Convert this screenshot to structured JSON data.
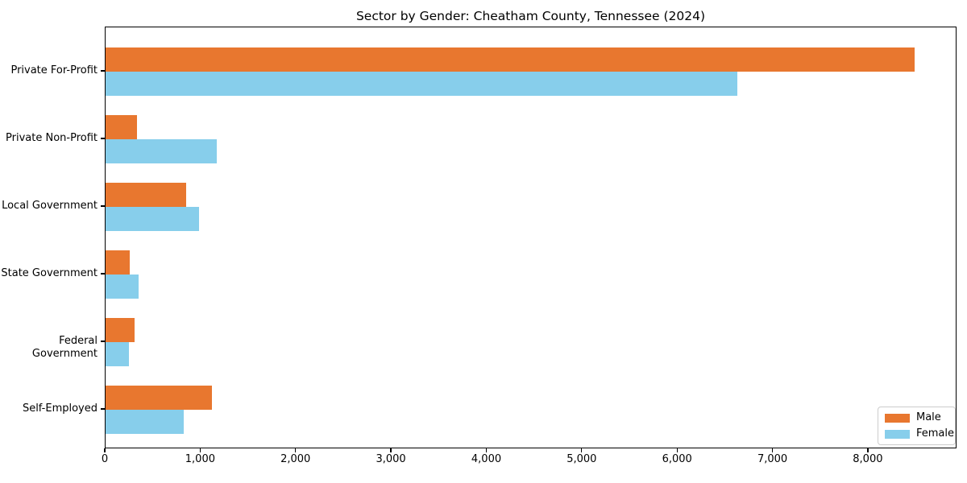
{
  "chart_data": {
    "type": "bar",
    "orientation": "horizontal",
    "title": "Sector by Gender: Cheatham County, Tennessee (2024)",
    "xlabel": "",
    "ylabel": "",
    "categories": [
      "Private For-Profit",
      "Private Non-Profit",
      "Local Government",
      "State Government",
      "Federal Government",
      "Self-Employed"
    ],
    "series": [
      {
        "name": "Male",
        "color": "#e8772f",
        "values": [
          8485,
          330,
          845,
          255,
          305,
          1115
        ]
      },
      {
        "name": "Female",
        "color": "#87ceeb",
        "values": [
          6620,
          1165,
          980,
          345,
          245,
          820
        ]
      }
    ],
    "xlim": [
      0,
      8930
    ],
    "xticks": [
      0,
      1000,
      2000,
      3000,
      4000,
      5000,
      6000,
      7000,
      8000
    ],
    "xtick_labels": [
      "0",
      "1,000",
      "2,000",
      "3,000",
      "4,000",
      "5,000",
      "6,000",
      "7,000",
      "8,000"
    ],
    "grid": false,
    "legend_position": "lower right",
    "legend_items": [
      "Male",
      "Female"
    ]
  }
}
